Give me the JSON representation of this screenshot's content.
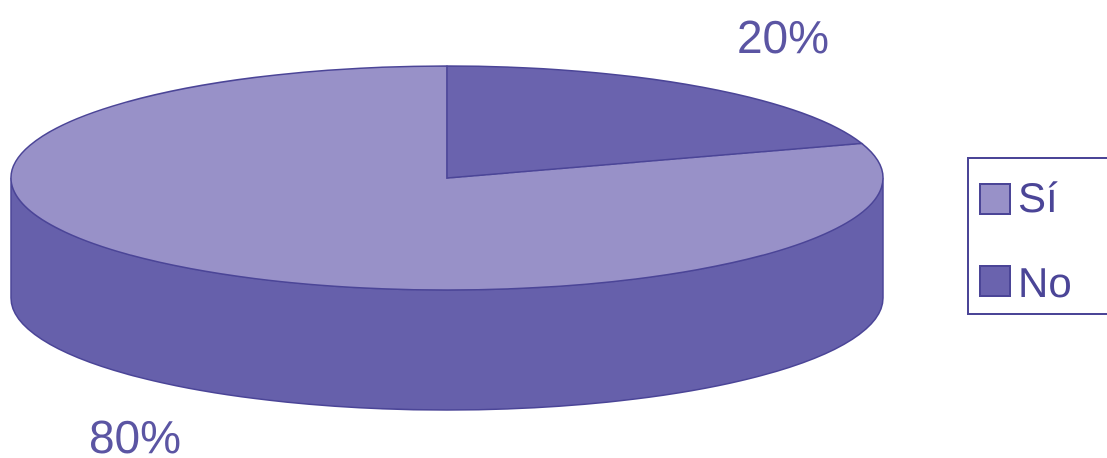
{
  "chart_data": {
    "type": "pie",
    "is_3d": true,
    "categories": [
      "Sí",
      "No"
    ],
    "values": [
      80,
      20
    ],
    "data_labels": [
      "80%",
      "20%"
    ],
    "colors": {
      "Sí": "#9891c8",
      "No": "#6a63ae",
      "side": "#6660ab",
      "outline": "#4b4597",
      "label": "#5b55a3"
    },
    "legend": {
      "position": "right",
      "entries": [
        "Sí",
        "No"
      ]
    }
  }
}
